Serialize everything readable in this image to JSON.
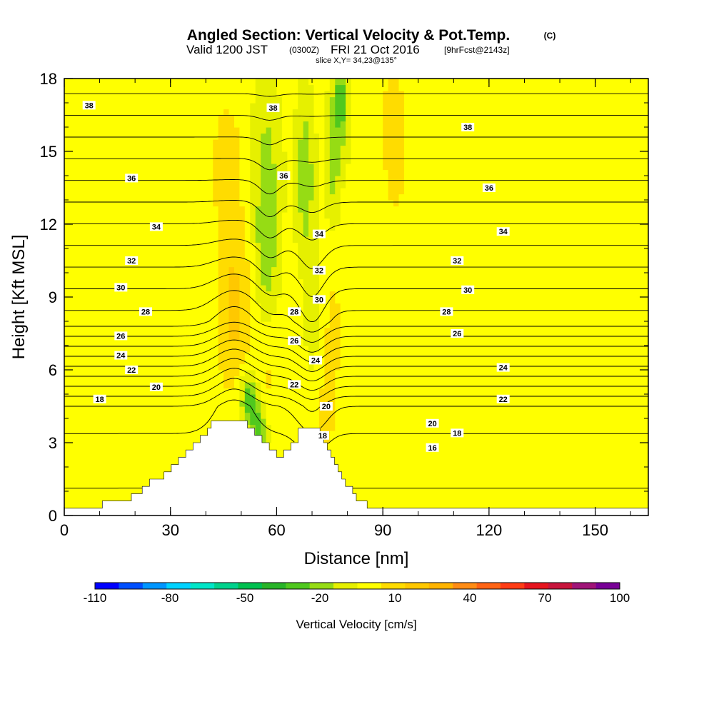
{
  "header": {
    "title": "Angled Section: Vertical Velocity & Pot.Temp.",
    "title_unit": "(C)",
    "valid_main": "Valid 1200 JST",
    "valid_z": "(0300Z)",
    "valid_date": "FRI 21 Oct 2016",
    "valid_fcst": "[9hrFcst@2143z]",
    "slice": "slice X,Y= 34,23@135°"
  },
  "chart_data": {
    "type": "heatmap",
    "xlabel": "Distance [nm]",
    "ylabel": "Height [Kft MSL]",
    "xlim": [
      0,
      165
    ],
    "ylim": [
      0,
      18
    ],
    "x_ticks": [
      "0",
      "30",
      "60",
      "90",
      "120",
      "150"
    ],
    "y_ticks": [
      "0",
      "3",
      "6",
      "9",
      "12",
      "15",
      "18"
    ],
    "grid": false,
    "fill_variable": "Vertical Velocity",
    "contour_variable": "Potential Temperature",
    "colorbar": {
      "title": "Vertical Velocity [cm/s]",
      "placement": "bottom",
      "labels": [
        "-110",
        "-80",
        "-50",
        "-20",
        "10",
        "40",
        "70",
        "100"
      ],
      "levels": [
        -110,
        -100,
        -90,
        -80,
        -70,
        -60,
        -50,
        -40,
        -30,
        -20,
        -10,
        0,
        10,
        20,
        30,
        40,
        50,
        60,
        70,
        80,
        90,
        100
      ],
      "colors": [
        "#0000ff",
        "#0050ff",
        "#0096ff",
        "#00d2ff",
        "#00e6c8",
        "#00d28c",
        "#00c050",
        "#28b428",
        "#50c81e",
        "#96dc14",
        "#e6f000",
        "#ffff00",
        "#ffdc00",
        "#ffc800",
        "#ffb400",
        "#ff8c14",
        "#ff6414",
        "#ff3c14",
        "#e6141e",
        "#c8143c",
        "#a01478",
        "#780096"
      ]
    },
    "terrain_heights": [
      0.3,
      0.3,
      0.3,
      0.3,
      0.3,
      0.3,
      0.3,
      0.3,
      0.3,
      0.3,
      0.3,
      0.6,
      0.6,
      0.6,
      0.6,
      0.6,
      0.6,
      0.6,
      0.6,
      0.9,
      0.9,
      0.9,
      1.2,
      1.2,
      1.5,
      1.5,
      1.5,
      1.5,
      1.8,
      1.8,
      2.1,
      2.1,
      2.4,
      2.4,
      2.7,
      2.7,
      3.0,
      3.0,
      3.3,
      3.3,
      3.6,
      3.9,
      3.9,
      3.9,
      3.9,
      3.9,
      3.9,
      3.9,
      3.9,
      3.9,
      3.9,
      3.6,
      3.6,
      3.3,
      3.3,
      3.0,
      3.0,
      2.7,
      2.7,
      2.4,
      2.4,
      2.7,
      2.7,
      3.0,
      3.0,
      3.6,
      3.6,
      3.6,
      3.6,
      3.6,
      3.6,
      3.3,
      3.0,
      2.7,
      2.4,
      2.1,
      1.8,
      1.5,
      1.2,
      1.2,
      0.9,
      0.6,
      0.6,
      0.6,
      0.3,
      0.3,
      0.3,
      0.3,
      0.3,
      0.3,
      0.3,
      0.3,
      0.3,
      0.3,
      0.3,
      0.3,
      0.3,
      0.3,
      0.3,
      0.3,
      0.3,
      0.3,
      0.3,
      0.3,
      0.3,
      0.3,
      0.3,
      0.3,
      0.3,
      0.3,
      0.3,
      0.3,
      0.3,
      0.3,
      0.3,
      0.3,
      0.3,
      0.3,
      0.3,
      0.3,
      0.3,
      0.3,
      0.3,
      0.3,
      0.3,
      0.3,
      0.3,
      0.3,
      0.3,
      0.3,
      0.3,
      0.3,
      0.3,
      0.3,
      0.3,
      0.3,
      0.3,
      0.3,
      0.3,
      0.3,
      0.3,
      0.3,
      0.3,
      0.3,
      0.3,
      0.3,
      0.3,
      0.3,
      0.3,
      0.3,
      0.3,
      0.3,
      0.3,
      0.3,
      0.3,
      0.3,
      0.3,
      0.3,
      0.3,
      0.3,
      0.3,
      0.3
    ],
    "velocity_features": [
      {
        "x": 48,
        "y": 8.5,
        "sx": 5,
        "sy": 3.5,
        "w": 20
      },
      {
        "x": 46,
        "y": 14.5,
        "sx": 5,
        "sy": 3,
        "w": 12
      },
      {
        "x": 57,
        "y": 14,
        "sx": 4,
        "sy": 3.5,
        "w": -18
      },
      {
        "x": 57,
        "y": 10.5,
        "sx": 3,
        "sy": 2,
        "w": -16
      },
      {
        "x": 68,
        "y": 14,
        "sx": 2.5,
        "sy": 3,
        "w": -22
      },
      {
        "x": 70,
        "y": 9,
        "sx": 2,
        "sy": 2.5,
        "w": -12
      },
      {
        "x": 78,
        "y": 17,
        "sx": 2.5,
        "sy": 2,
        "w": -28
      },
      {
        "x": 76,
        "y": 14,
        "sx": 2,
        "sy": 2,
        "w": -15
      },
      {
        "x": 52,
        "y": 4.8,
        "sx": 2.5,
        "sy": 1.2,
        "w": -30
      },
      {
        "x": 55,
        "y": 3.6,
        "sx": 2.2,
        "sy": 1.0,
        "w": -25
      },
      {
        "x": 74,
        "y": 4.2,
        "sx": 2,
        "sy": 1.5,
        "w": 14
      },
      {
        "x": 76,
        "y": 7.5,
        "sx": 3,
        "sy": 3,
        "w": 10
      },
      {
        "x": 58,
        "y": 5.5,
        "sx": 3,
        "sy": 1.5,
        "w": 8
      },
      {
        "x": 93,
        "y": 16,
        "sx": 4,
        "sy": 3,
        "w": 12
      },
      {
        "x": 95,
        "y": 10,
        "sx": 5,
        "sy": 4,
        "w": 6
      },
      {
        "x": 126,
        "y": 15,
        "sx": 5,
        "sy": 3,
        "w": 4
      },
      {
        "x": 5,
        "y": 13,
        "sx": 5,
        "sy": 5,
        "w": 5
      },
      {
        "x": 15,
        "y": 3,
        "sx": 8,
        "sy": 2,
        "w": 6
      },
      {
        "x": 112,
        "y": 2,
        "sx": 15,
        "sy": 2,
        "w": 6
      },
      {
        "x": 145,
        "y": 8,
        "sx": 8,
        "sy": 5,
        "w": 5
      },
      {
        "x": 22,
        "y": 15,
        "sx": 6,
        "sy": 4,
        "w": 4
      },
      {
        "x": 160,
        "y": 14,
        "sx": 4,
        "sy": 4,
        "w": 5
      }
    ],
    "contour_levels": [
      14,
      16,
      18,
      19,
      20,
      21,
      22,
      23,
      24,
      25,
      26,
      27,
      28,
      29,
      30,
      31,
      32,
      33,
      34,
      35,
      36,
      37,
      38,
      39
    ],
    "contour_labels": [
      {
        "text": "38",
        "x": 7,
        "y": 16.9
      },
      {
        "text": "38",
        "x": 59,
        "y": 16.8
      },
      {
        "text": "38",
        "x": 114,
        "y": 16.0
      },
      {
        "text": "36",
        "x": 19,
        "y": 13.9
      },
      {
        "text": "36",
        "x": 62,
        "y": 14.0
      },
      {
        "text": "36",
        "x": 120,
        "y": 13.5
      },
      {
        "text": "34",
        "x": 26,
        "y": 11.9
      },
      {
        "text": "34",
        "x": 72,
        "y": 11.6
      },
      {
        "text": "34",
        "x": 124,
        "y": 11.7
      },
      {
        "text": "32",
        "x": 19,
        "y": 10.5
      },
      {
        "text": "32",
        "x": 72,
        "y": 10.1
      },
      {
        "text": "32",
        "x": 111,
        "y": 10.5
      },
      {
        "text": "30",
        "x": 16,
        "y": 9.4
      },
      {
        "text": "30",
        "x": 72,
        "y": 8.9
      },
      {
        "text": "30",
        "x": 114,
        "y": 9.3
      },
      {
        "text": "28",
        "x": 23,
        "y": 8.4
      },
      {
        "text": "28",
        "x": 65,
        "y": 8.4
      },
      {
        "text": "28",
        "x": 108,
        "y": 8.4
      },
      {
        "text": "26",
        "x": 16,
        "y": 7.4
      },
      {
        "text": "26",
        "x": 65,
        "y": 7.2
      },
      {
        "text": "26",
        "x": 111,
        "y": 7.5
      },
      {
        "text": "24",
        "x": 16,
        "y": 6.6
      },
      {
        "text": "24",
        "x": 71,
        "y": 6.4
      },
      {
        "text": "24",
        "x": 124,
        "y": 6.1
      },
      {
        "text": "22",
        "x": 19,
        "y": 6.0
      },
      {
        "text": "22",
        "x": 65,
        "y": 5.4
      },
      {
        "text": "22",
        "x": 124,
        "y": 4.8
      },
      {
        "text": "20",
        "x": 26,
        "y": 5.3
      },
      {
        "text": "20",
        "x": 74,
        "y": 4.5
      },
      {
        "text": "20",
        "x": 104,
        "y": 3.8
      },
      {
        "text": "18",
        "x": 10,
        "y": 4.8
      },
      {
        "text": "18",
        "x": 73,
        "y": 3.3
      },
      {
        "text": "18",
        "x": 111,
        "y": 3.4
      },
      {
        "text": "16",
        "x": 104,
        "y": 2.8
      }
    ]
  }
}
